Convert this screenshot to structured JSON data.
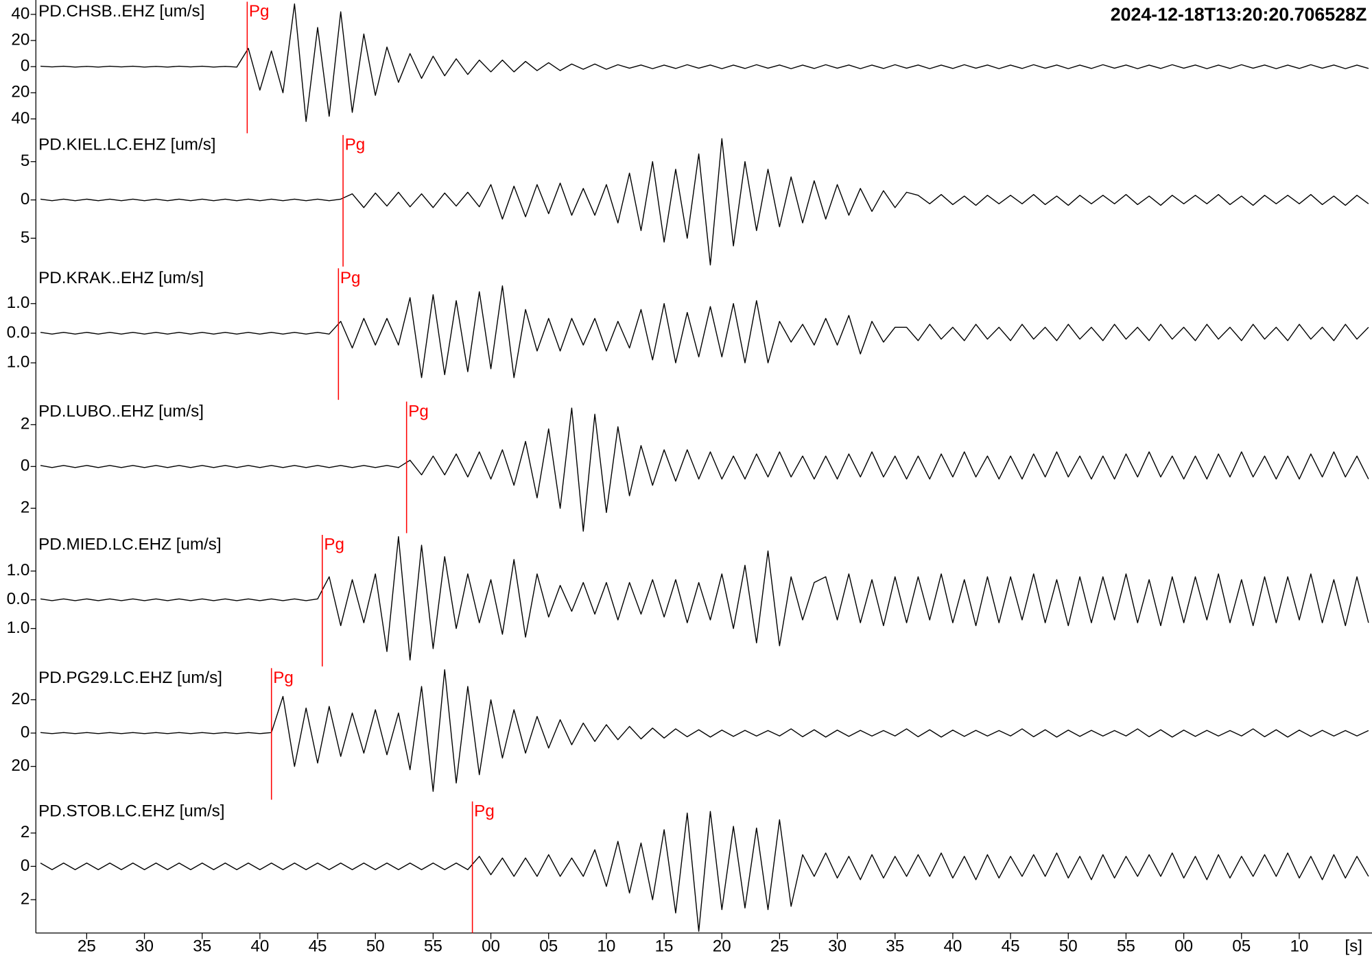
{
  "timestamp": "2024-12-18T13:20:20.706528Z",
  "chart_data": {
    "type": "line",
    "xlabel": "[s]",
    "xlim": [
      20.6,
      136.3
    ],
    "pick_color": "#ff0000",
    "xticks": [
      25,
      30,
      35,
      40,
      45,
      50,
      55,
      {
        "value": 60,
        "label": "00"
      },
      {
        "value": 65,
        "label": "05"
      },
      {
        "value": 70,
        "label": "10"
      },
      {
        "value": 75,
        "label": "15"
      },
      {
        "value": 80,
        "label": "20"
      },
      {
        "value": 85,
        "label": "25"
      },
      {
        "value": 90,
        "label": "30"
      },
      {
        "value": 95,
        "label": "35"
      },
      {
        "value": 100,
        "label": "40"
      },
      {
        "value": 105,
        "label": "45"
      },
      {
        "value": 110,
        "label": "50"
      },
      {
        "value": 115,
        "label": "55"
      },
      {
        "value": 120,
        "label": "00"
      },
      {
        "value": 125,
        "label": "05"
      },
      {
        "value": 130,
        "label": "10"
      }
    ],
    "x": [
      21,
      22,
      23,
      24,
      25,
      26,
      27,
      28,
      29,
      30,
      31,
      32,
      33,
      34,
      35,
      36,
      37,
      38,
      39,
      40,
      41,
      42,
      43,
      44,
      45,
      46,
      47,
      48,
      49,
      50,
      51,
      52,
      53,
      54,
      55,
      56,
      57,
      58,
      59,
      60,
      61,
      62,
      63,
      64,
      65,
      66,
      67,
      68,
      69,
      70,
      71,
      72,
      73,
      74,
      75,
      76,
      77,
      78,
      79,
      80,
      81,
      82,
      83,
      84,
      85,
      86,
      87,
      88,
      89,
      90,
      91,
      92,
      93,
      94,
      95,
      96,
      97,
      98,
      99,
      100,
      101,
      102,
      103,
      104,
      105,
      106,
      107,
      108,
      109,
      110,
      111,
      112,
      113,
      114,
      115,
      116,
      117,
      118,
      119,
      120,
      121,
      122,
      123,
      124,
      125,
      126,
      127,
      128,
      129,
      130,
      131,
      132,
      133,
      134,
      135,
      136
    ],
    "series": [
      {
        "name": "PD.CHSB..EHZ [um/s]",
        "color": "#000000",
        "ylim": [
          -51,
          51
        ],
        "yticks": [
          40,
          20,
          0,
          {
            "value": -20,
            "label": "20"
          },
          {
            "value": -40,
            "label": "40"
          }
        ],
        "pick": {
          "label": "Pg",
          "x": 38.9
        },
        "values": [
          0.3,
          -0.2,
          0.3,
          -0.3,
          0.2,
          -0.3,
          0.3,
          -0.2,
          0.3,
          -0.3,
          0.2,
          -0.3,
          0.3,
          -0.2,
          0.3,
          -0.3,
          0.2,
          -0.3,
          14,
          -18,
          12,
          -20,
          48,
          -42,
          30,
          -38,
          42,
          -35,
          25,
          -22,
          15,
          -12,
          10,
          -9,
          8,
          -7,
          6,
          -6,
          5,
          -4,
          5,
          -4,
          4,
          -3,
          3,
          -3,
          2,
          -2,
          2,
          -2,
          1.5,
          -1.2,
          1.3,
          -1.5,
          1.2,
          -1.4,
          1.5,
          -1.2,
          1.3,
          -1.5,
          1.2,
          -1.4,
          1.5,
          -1.2,
          1.3,
          -1.5,
          1.2,
          -1.4,
          1.5,
          -1.2,
          1.3,
          -1.5,
          1.2,
          -1.4,
          1.5,
          -1.2,
          1.3,
          -1.5,
          1.2,
          -1.4,
          1.5,
          -1.2,
          1.3,
          -1.5,
          1.2,
          -1.4,
          1.5,
          -1.2,
          1.3,
          -1.5,
          1.2,
          -1.4,
          1.5,
          -1.2,
          1.3,
          -1.5,
          1.2,
          -1.4,
          1.5,
          -1.2,
          1.3,
          -1.5,
          1.2,
          -1.4,
          1.5,
          -1.2,
          1.3,
          -1.5,
          1.2,
          -1.4,
          1.5,
          -1.2,
          1.3,
          -1.5,
          1.2,
          -1.4
        ]
      },
      {
        "name": "PD.KIEL.LC.EHZ [um/s]",
        "color": "#000000",
        "ylim": [
          -8.7,
          8.7
        ],
        "yticks": [
          5,
          0,
          {
            "value": -5,
            "label": "5"
          }
        ],
        "pick": {
          "label": "Pg",
          "x": 47.2
        },
        "values": [
          0.1,
          -0.1,
          0.1,
          -0.1,
          0.1,
          -0.1,
          0.1,
          -0.1,
          0.1,
          -0.1,
          0.1,
          -0.1,
          0.1,
          -0.1,
          0.1,
          -0.1,
          0.1,
          -0.1,
          0.1,
          -0.1,
          0.1,
          -0.1,
          0.1,
          -0.1,
          0.1,
          -0.1,
          0.1,
          0.8,
          -1,
          0.9,
          -0.8,
          1,
          -0.9,
          0.8,
          -1,
          0.9,
          -0.8,
          1,
          -0.9,
          2,
          -2.5,
          1.8,
          -2.2,
          2,
          -1.8,
          2.2,
          -2,
          1.5,
          -2,
          2,
          -3,
          3.5,
          -4,
          5,
          -5.5,
          4,
          -5,
          6,
          -8.5,
          8,
          -6,
          5,
          -4,
          4,
          -3.5,
          3,
          -3,
          2.5,
          -2.5,
          2,
          -2,
          1.5,
          -1.5,
          1.2,
          -1,
          1,
          0.6,
          -0.5,
          0.7,
          -0.6,
          0.5,
          -0.7,
          0.6,
          -0.5,
          0.6,
          -0.5,
          0.7,
          -0.6,
          0.5,
          -0.7,
          0.6,
          -0.5,
          0.6,
          -0.5,
          0.7,
          -0.6,
          0.5,
          -0.7,
          0.6,
          -0.5,
          0.6,
          -0.5,
          0.7,
          -0.6,
          0.5,
          -0.7,
          0.6,
          -0.5,
          0.6,
          -0.5,
          0.7,
          -0.6,
          0.5,
          -0.7,
          0.6,
          -0.5
        ]
      },
      {
        "name": "PD.KRAK..EHZ [um/s]",
        "color": "#000000",
        "ylim": [
          -2.25,
          2.25
        ],
        "yticks": [
          {
            "value": 1,
            "label": "1.0"
          },
          {
            "value": 0,
            "label": "0.0"
          },
          {
            "value": -1,
            "label": "1.0"
          }
        ],
        "pick": {
          "label": "Pg",
          "x": 46.8
        },
        "values": [
          0.03,
          -0.03,
          0.03,
          -0.03,
          0.03,
          -0.03,
          0.03,
          -0.03,
          0.03,
          -0.03,
          0.03,
          -0.03,
          0.03,
          -0.03,
          0.03,
          -0.03,
          0.03,
          -0.03,
          0.03,
          -0.03,
          0.03,
          -0.03,
          0.03,
          -0.03,
          0.03,
          -0.03,
          0.4,
          -0.5,
          0.5,
          -0.4,
          0.5,
          -0.4,
          1.2,
          -1.5,
          1.3,
          -1.4,
          1.1,
          -1.3,
          1.4,
          -1.2,
          1.6,
          -1.5,
          0.8,
          -0.6,
          0.5,
          -0.6,
          0.5,
          -0.4,
          0.5,
          -0.6,
          0.4,
          -0.5,
          0.8,
          -0.9,
          1.0,
          -1.0,
          0.7,
          -0.8,
          0.9,
          -0.8,
          1.0,
          -1.0,
          1.1,
          -1.0,
          0.4,
          -0.3,
          0.3,
          -0.4,
          0.5,
          -0.4,
          0.6,
          -0.7,
          0.4,
          -0.3,
          0.2,
          0.2,
          -0.25,
          0.3,
          -0.2,
          0.2,
          -0.25,
          0.3,
          -0.2,
          0.2,
          -0.25,
          0.3,
          -0.2,
          0.2,
          -0.25,
          0.3,
          -0.2,
          0.2,
          -0.25,
          0.3,
          -0.2,
          0.2,
          -0.25,
          0.3,
          -0.2,
          0.2,
          -0.25,
          0.3,
          -0.2,
          0.2,
          -0.25,
          0.3,
          -0.2,
          0.2,
          -0.25,
          0.3,
          -0.2,
          0.2,
          -0.25,
          0.3,
          -0.2,
          0.2
        ]
      },
      {
        "name": "PD.LUBO..EHZ [um/s]",
        "color": "#000000",
        "ylim": [
          -3.19,
          3.19
        ],
        "yticks": [
          2,
          0,
          {
            "value": -2,
            "label": "2"
          }
        ],
        "pick": {
          "label": "Pg",
          "x": 52.7
        },
        "values": [
          0.05,
          -0.05,
          0.05,
          -0.05,
          0.05,
          -0.05,
          0.05,
          -0.05,
          0.05,
          -0.05,
          0.05,
          -0.05,
          0.05,
          -0.05,
          0.05,
          -0.05,
          0.05,
          -0.05,
          0.05,
          -0.05,
          0.05,
          -0.05,
          0.05,
          -0.05,
          0.05,
          -0.05,
          0.05,
          -0.05,
          0.05,
          -0.05,
          0.05,
          -0.05,
          0.3,
          -0.4,
          0.5,
          -0.4,
          0.6,
          -0.5,
          0.7,
          -0.6,
          0.8,
          -0.9,
          1.2,
          -1.5,
          1.8,
          -2.0,
          2.8,
          -3.1,
          2.5,
          -2.2,
          1.9,
          -1.4,
          1.0,
          -0.9,
          0.8,
          -0.7,
          0.8,
          -0.6,
          0.7,
          -0.6,
          0.5,
          -0.6,
          0.6,
          -0.5,
          0.7,
          -0.5,
          0.5,
          -0.6,
          0.5,
          -0.6,
          0.6,
          -0.5,
          0.7,
          -0.5,
          0.5,
          -0.6,
          0.5,
          -0.6,
          0.6,
          -0.5,
          0.7,
          -0.5,
          0.5,
          -0.6,
          0.5,
          -0.6,
          0.6,
          -0.5,
          0.7,
          -0.5,
          0.5,
          -0.6,
          0.5,
          -0.6,
          0.6,
          -0.5,
          0.7,
          -0.5,
          0.5,
          -0.6,
          0.5,
          -0.6,
          0.6,
          -0.5,
          0.7,
          -0.5,
          0.5,
          -0.6,
          0.5,
          -0.6,
          0.6,
          -0.5,
          0.7,
          -0.5,
          0.5,
          -0.6
        ]
      },
      {
        "name": "PD.MIED.LC.EHZ [um/s]",
        "color": "#000000",
        "ylim": [
          -2.32,
          2.32
        ],
        "yticks": [
          {
            "value": 1,
            "label": "1.0"
          },
          {
            "value": 0,
            "label": "0.0"
          },
          {
            "value": -1,
            "label": "1.0"
          }
        ],
        "pick": {
          "label": "Pg",
          "x": 45.4
        },
        "values": [
          0.03,
          -0.03,
          0.03,
          -0.03,
          0.03,
          -0.03,
          0.03,
          -0.03,
          0.03,
          -0.03,
          0.03,
          -0.03,
          0.03,
          -0.03,
          0.03,
          -0.03,
          0.03,
          -0.03,
          0.03,
          -0.03,
          0.03,
          -0.03,
          0.03,
          -0.03,
          0.03,
          0.8,
          -0.9,
          0.7,
          -0.8,
          0.9,
          -1.8,
          2.2,
          -2.1,
          1.9,
          -1.7,
          1.5,
          -1.0,
          0.9,
          -0.8,
          0.7,
          -1.2,
          1.4,
          -1.3,
          0.9,
          -0.6,
          0.5,
          -0.4,
          0.6,
          -0.5,
          0.6,
          -0.7,
          0.6,
          -0.5,
          0.7,
          -0.6,
          0.7,
          -0.8,
          0.6,
          -0.7,
          0.9,
          -1.0,
          1.2,
          -1.5,
          1.7,
          -1.6,
          0.8,
          -0.7,
          0.6,
          0.8,
          -0.7,
          0.9,
          -0.8,
          0.7,
          -0.9,
          0.8,
          -0.8,
          0.8,
          -0.7,
          0.9,
          -0.8,
          0.7,
          -0.9,
          0.8,
          -0.8,
          0.8,
          -0.7,
          0.9,
          -0.8,
          0.7,
          -0.9,
          0.8,
          -0.8,
          0.8,
          -0.7,
          0.9,
          -0.8,
          0.7,
          -0.9,
          0.8,
          -0.8,
          0.8,
          -0.7,
          0.9,
          -0.8,
          0.7,
          -0.9,
          0.8,
          -0.8,
          0.8,
          -0.7,
          0.9,
          -0.8,
          0.7,
          -0.9,
          0.8,
          -0.8
        ]
      },
      {
        "name": "PD.PG29.LC.EHZ [um/s]",
        "color": "#000000",
        "ylim": [
          -40,
          40
        ],
        "yticks": [
          20,
          0,
          {
            "value": -20,
            "label": "20"
          }
        ],
        "pick": {
          "label": "Pg",
          "x": 41.0
        },
        "values": [
          0.3,
          -0.3,
          0.3,
          -0.3,
          0.3,
          -0.3,
          0.3,
          -0.3,
          0.3,
          -0.3,
          0.3,
          -0.3,
          0.3,
          -0.3,
          0.3,
          -0.3,
          0.3,
          -0.3,
          0.3,
          -0.3,
          0.3,
          22,
          -20,
          15,
          -18,
          16,
          -14,
          12,
          -12,
          14,
          -13,
          12,
          -22,
          28,
          -35,
          38,
          -30,
          28,
          -25,
          20,
          -15,
          14,
          -12,
          10,
          -9,
          8,
          -7,
          6,
          -5,
          5,
          -4,
          4,
          -3.5,
          3,
          -3,
          2.5,
          -2.2,
          2.0,
          -2.4,
          1.8,
          -2.0,
          1.6,
          -1.8,
          1.5,
          -1.7,
          2.5,
          -2.2,
          2.0,
          -2.4,
          1.8,
          -2.0,
          1.6,
          -1.8,
          1.5,
          -1.7,
          2.5,
          -2.2,
          2.0,
          -2.4,
          1.8,
          -2.0,
          1.6,
          -1.8,
          1.5,
          -1.7,
          2.5,
          -2.2,
          2.0,
          -2.4,
          1.8,
          -2.0,
          1.6,
          -1.8,
          1.5,
          -1.7,
          2.5,
          -2.2,
          2.0,
          -2.4,
          1.8,
          -2.0,
          1.6,
          -1.8,
          1.5,
          -1.7,
          2.5,
          -2.2,
          2.0,
          -2.4,
          1.8,
          -2.0,
          1.6,
          -1.8,
          1.5,
          -1.7,
          1.5
        ]
      },
      {
        "name": "PD.STOB.LC.EHZ [um/s]",
        "color": "#000000",
        "ylim": [
          -4,
          4
        ],
        "yticks": [
          2,
          0,
          {
            "value": -2,
            "label": "2"
          }
        ],
        "pick": {
          "label": "Pg",
          "x": 58.4
        },
        "values": [
          0.2,
          -0.2,
          0.2,
          -0.2,
          0.2,
          -0.2,
          0.2,
          -0.2,
          0.2,
          -0.2,
          0.2,
          -0.2,
          0.2,
          -0.2,
          0.2,
          -0.2,
          0.2,
          -0.2,
          0.2,
          -0.2,
          0.2,
          -0.2,
          0.2,
          -0.2,
          0.2,
          -0.2,
          0.2,
          -0.2,
          0.2,
          -0.2,
          0.2,
          -0.2,
          0.2,
          -0.2,
          0.2,
          -0.2,
          0.2,
          -0.2,
          0.6,
          -0.5,
          0.5,
          -0.6,
          0.5,
          -0.6,
          0.7,
          -0.6,
          0.5,
          -0.6,
          1.0,
          -1.2,
          1.5,
          -1.6,
          1.4,
          -2.0,
          2.2,
          -2.8,
          3.2,
          -3.9,
          3.3,
          -2.6,
          2.4,
          -2.5,
          2.3,
          -2.6,
          2.8,
          -2.4,
          0.7,
          -0.6,
          0.8,
          -0.7,
          0.6,
          -0.8,
          0.7,
          -0.7,
          0.6,
          -0.6,
          0.7,
          -0.6,
          0.8,
          -0.7,
          0.6,
          -0.8,
          0.7,
          -0.7,
          0.6,
          -0.6,
          0.7,
          -0.6,
          0.8,
          -0.7,
          0.6,
          -0.8,
          0.7,
          -0.7,
          0.6,
          -0.6,
          0.7,
          -0.6,
          0.8,
          -0.7,
          0.6,
          -0.8,
          0.7,
          -0.7,
          0.6,
          -0.6,
          0.7,
          -0.6,
          0.8,
          -0.7,
          0.6,
          -0.8,
          0.7,
          -0.7,
          0.6,
          -0.6
        ]
      }
    ]
  }
}
